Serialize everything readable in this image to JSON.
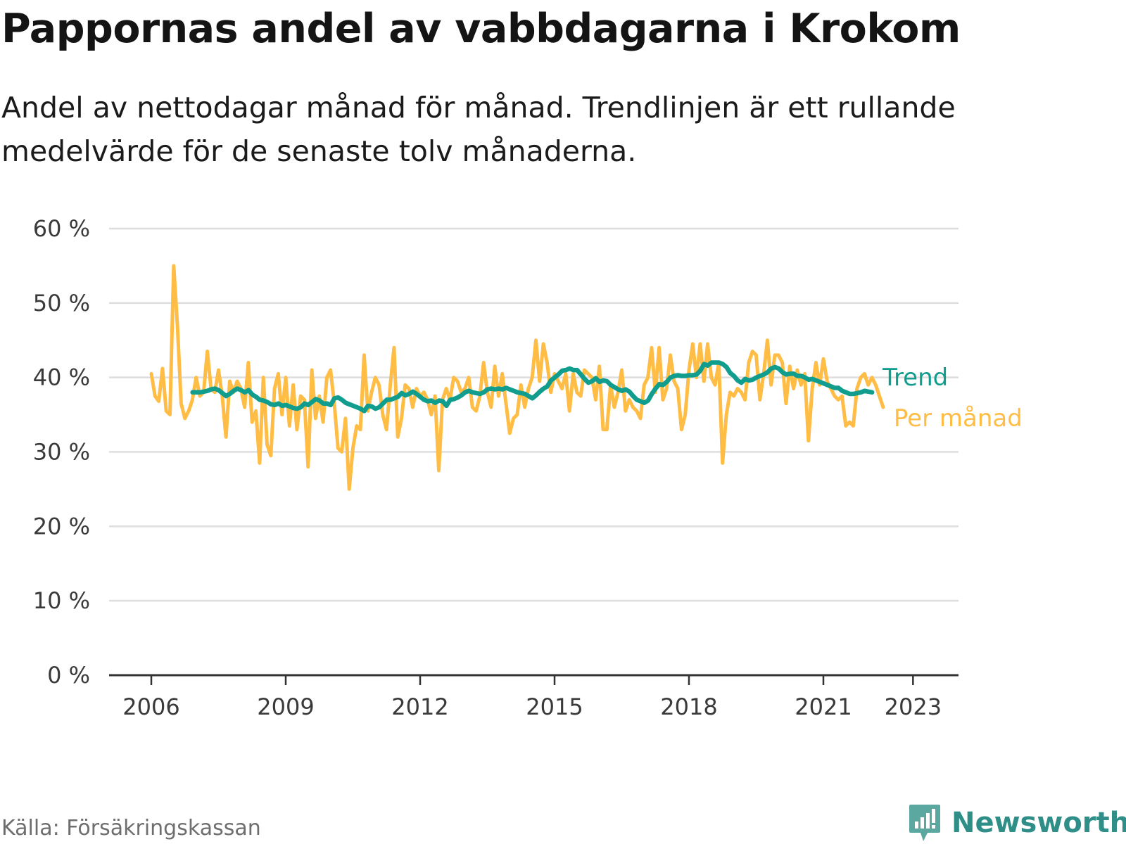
{
  "title": "Pappornas andel av vabbdagarna i Krokom",
  "subtitle": "Andel av nettodagar månad för månad. Trendlinjen är ett rullande medelvärde för de senaste tolv månaderna.",
  "source": "Källa: Försäkringskassan",
  "brand": {
    "name": "Newsworthy",
    "color": "#2f8f88",
    "icon": "bar-chart-speech-bubble-icon"
  },
  "colors": {
    "trend": "#119d8e",
    "monthly": "#ffbd45",
    "grid": "#dddddd",
    "axis": "#333333"
  },
  "chart_data": {
    "type": "line",
    "x_unit": "year (decimal)",
    "xlim": [
      2005.2,
      2024.3
    ],
    "ylim": [
      0,
      60
    ],
    "y_ticks": [
      0,
      10,
      20,
      30,
      40,
      50,
      60
    ],
    "y_tick_labels": [
      "0 %",
      "10 %",
      "20 %",
      "30 %",
      "40 %",
      "50 %",
      "60 %"
    ],
    "x_ticks": [
      2006,
      2009,
      2012,
      2015,
      2018,
      2021,
      2023
    ],
    "x_tick_labels": [
      "2006",
      "2009",
      "2012",
      "2015",
      "2018",
      "2021",
      "2023"
    ],
    "grid": true,
    "legend": "direct labels at right end of lines",
    "series": [
      {
        "name": "Per månad",
        "key": "monthly",
        "x_start": 2006.0,
        "x_step": 0.0833333,
        "values": [
          40.5,
          37.5,
          36.8,
          41.2,
          35.5,
          35.0,
          55.0,
          47.0,
          36.5,
          34.5,
          35.5,
          37.0,
          40.0,
          37.5,
          38.0,
          43.5,
          38.5,
          38.0,
          41.0,
          37.5,
          32.0,
          39.5,
          38.0,
          39.5,
          38.5,
          36.0,
          42.0,
          34.0,
          35.5,
          28.5,
          40.0,
          31.0,
          29.5,
          38.5,
          40.5,
          35.0,
          40.0,
          33.5,
          39.0,
          33.0,
          37.5,
          37.0,
          28.0,
          41.0,
          34.5,
          37.5,
          34.0,
          40.0,
          41.0,
          36.5,
          30.5,
          30.0,
          34.5,
          25.0,
          30.5,
          33.5,
          33.0,
          43.0,
          35.5,
          38.0,
          40.0,
          39.0,
          35.0,
          33.0,
          39.0,
          44.0,
          32.0,
          34.5,
          39.0,
          38.5,
          36.0,
          38.5,
          37.5,
          38.0,
          37.0,
          35.0,
          37.5,
          27.5,
          37.0,
          38.5,
          37.0,
          40.0,
          39.5,
          38.0,
          38.5,
          40.0,
          36.0,
          35.5,
          37.5,
          42.0,
          38.0,
          36.0,
          41.5,
          37.5,
          40.5,
          36.5,
          32.5,
          34.5,
          35.0,
          39.0,
          36.0,
          38.5,
          40.0,
          45.0,
          39.5,
          44.5,
          42.0,
          38.0,
          40.5,
          39.5,
          38.5,
          40.5,
          35.5,
          40.5,
          38.0,
          37.5,
          41.0,
          40.5,
          40.0,
          37.0,
          41.5,
          33.0,
          33.0,
          39.0,
          36.0,
          38.0,
          41.0,
          35.5,
          37.0,
          36.0,
          35.5,
          34.5,
          39.0,
          40.0,
          44.0,
          38.0,
          44.0,
          37.0,
          38.5,
          43.0,
          39.5,
          38.5,
          33.0,
          35.0,
          41.0,
          44.5,
          40.0,
          44.5,
          39.5,
          44.5,
          40.0,
          39.0,
          42.0,
          28.5,
          35.0,
          38.0,
          37.5,
          38.5,
          38.0,
          37.0,
          42.0,
          43.5,
          43.0,
          37.0,
          40.5,
          45.0,
          39.0,
          43.0,
          43.0,
          42.0,
          36.5,
          41.5,
          38.5,
          41.0,
          39.0,
          40.5,
          31.5,
          38.5,
          42.0,
          39.0,
          42.5,
          39.5,
          38.5,
          37.5,
          37.0,
          37.5,
          33.5,
          34.0,
          33.5,
          38.5,
          40.0,
          40.5,
          39.0,
          40.0,
          39.0,
          37.5,
          36.0
        ]
      },
      {
        "name": "Trend",
        "key": "trend",
        "x_start": 2006.92,
        "x_step": 0.0833333,
        "values": [
          38.0,
          38.0,
          38.0,
          38.1,
          38.2,
          38.4,
          38.5,
          38.3,
          37.9,
          37.5,
          37.8,
          38.2,
          38.5,
          38.3,
          38.0,
          38.3,
          37.7,
          37.4,
          37.0,
          36.9,
          36.7,
          36.4,
          36.3,
          36.5,
          36.2,
          36.3,
          36.1,
          35.9,
          35.8,
          36.0,
          36.5,
          36.3,
          36.7,
          37.1,
          36.9,
          36.5,
          36.5,
          36.3,
          37.2,
          37.3,
          37.0,
          36.6,
          36.4,
          36.2,
          36.0,
          35.8,
          35.5,
          36.2,
          36.1,
          35.8,
          36.0,
          36.5,
          37.0,
          37.0,
          37.2,
          37.4,
          37.9,
          37.6,
          37.8,
          38.1,
          37.8,
          37.4,
          37.0,
          36.8,
          36.9,
          36.6,
          36.9,
          36.8,
          36.2,
          37.0,
          37.1,
          37.3,
          37.6,
          38.0,
          38.2,
          38.0,
          37.9,
          37.8,
          38.0,
          38.4,
          38.5,
          38.4,
          38.5,
          38.4,
          38.6,
          38.4,
          38.2,
          38.0,
          37.9,
          37.8,
          37.5,
          37.2,
          37.6,
          38.1,
          38.5,
          38.8,
          39.6,
          40.0,
          40.4,
          40.9,
          41.0,
          41.2,
          41.0,
          41.0,
          40.4,
          39.8,
          39.3,
          39.5,
          39.9,
          39.4,
          39.6,
          39.5,
          39.0,
          38.7,
          38.4,
          38.2,
          38.4,
          38.1,
          37.5,
          37.0,
          36.8,
          36.6,
          36.9,
          37.8,
          38.5,
          39.1,
          39.0,
          39.4,
          40.0,
          40.2,
          40.3,
          40.2,
          40.2,
          40.3,
          40.3,
          40.4,
          40.9,
          41.8,
          41.6,
          42.0,
          42.0,
          42.0,
          41.8,
          41.4,
          40.6,
          40.2,
          39.6,
          39.3,
          39.8,
          39.6,
          39.7,
          40.0,
          40.2,
          40.4,
          40.7,
          41.2,
          41.4,
          41.2,
          40.7,
          40.4,
          40.5,
          40.5,
          40.2,
          40.2,
          40.0,
          39.7,
          39.8,
          39.6,
          39.4,
          39.2,
          39.0,
          38.8,
          38.6,
          38.6,
          38.2,
          38.0,
          37.8,
          37.8,
          37.9,
          38.0,
          38.2,
          38.1,
          38.0
        ]
      }
    ]
  }
}
